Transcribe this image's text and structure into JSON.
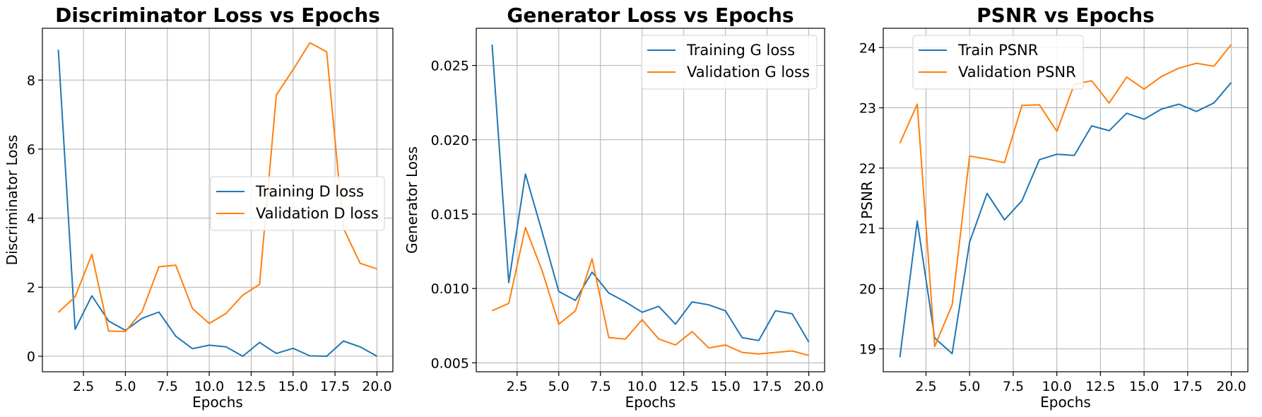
{
  "chart_data": [
    {
      "type": "line",
      "title": "Discriminator Loss vs Epochs",
      "xlabel": "Epochs",
      "ylabel": "Discriminator Loss",
      "xlim": [
        0.05,
        20.95
      ],
      "ylim": [
        -0.45,
        9.5
      ],
      "xticks": [
        2.5,
        5.0,
        7.5,
        10.0,
        12.5,
        15.0,
        17.5,
        20.0
      ],
      "xtick_labels": [
        "2.5",
        "5.0",
        "7.5",
        "10.0",
        "12.5",
        "15.0",
        "17.5",
        "20.0"
      ],
      "yticks": [
        0,
        2,
        4,
        6,
        8
      ],
      "ytick_labels": [
        "0",
        "2",
        "4",
        "6",
        "8"
      ],
      "grid": true,
      "legend": "center-right",
      "x": [
        1,
        2,
        3,
        4,
        5,
        6,
        7,
        8,
        9,
        10,
        11,
        12,
        13,
        14,
        15,
        16,
        17,
        18,
        19,
        20
      ],
      "series": [
        {
          "name": "Training D loss",
          "color": "#1f77b4",
          "values": [
            8.88,
            0.78,
            1.75,
            1.02,
            0.75,
            1.1,
            1.28,
            0.58,
            0.22,
            0.32,
            0.27,
            0.0,
            0.4,
            0.08,
            0.23,
            0.01,
            0.0,
            0.44,
            0.27,
            0.0
          ]
        },
        {
          "name": "Validation D loss",
          "color": "#ff7f0e",
          "values": [
            1.27,
            1.72,
            2.95,
            0.73,
            0.72,
            1.3,
            2.59,
            2.64,
            1.38,
            0.95,
            1.24,
            1.77,
            2.08,
            7.57,
            8.3,
            9.08,
            8.82,
            3.71,
            2.69,
            2.53
          ]
        }
      ]
    },
    {
      "type": "line",
      "title": "Generator Loss vs Epochs",
      "xlabel": "Epochs",
      "ylabel": "Generator Loss",
      "xlim": [
        0.05,
        20.95
      ],
      "ylim": [
        0.0044,
        0.0275
      ],
      "xticks": [
        2.5,
        5.0,
        7.5,
        10.0,
        12.5,
        15.0,
        17.5,
        20.0
      ],
      "xtick_labels": [
        "2.5",
        "5.0",
        "7.5",
        "10.0",
        "12.5",
        "15.0",
        "17.5",
        "20.0"
      ],
      "yticks": [
        0.005,
        0.01,
        0.015,
        0.02,
        0.025
      ],
      "ytick_labels": [
        "0.005",
        "0.010",
        "0.015",
        "0.020",
        "0.025"
      ],
      "grid": true,
      "legend": "top-right",
      "x": [
        1,
        2,
        3,
        4,
        5,
        6,
        7,
        8,
        9,
        10,
        11,
        12,
        13,
        14,
        15,
        16,
        17,
        18,
        19,
        20
      ],
      "series": [
        {
          "name": "Training G loss",
          "color": "#1f77b4",
          "values": [
            0.0264,
            0.0104,
            0.0177,
            0.0138,
            0.0098,
            0.0092,
            0.0111,
            0.0097,
            0.0091,
            0.0084,
            0.0088,
            0.0076,
            0.0091,
            0.0089,
            0.0085,
            0.0067,
            0.0065,
            0.0085,
            0.0083,
            0.0064
          ]
        },
        {
          "name": "Validation G loss",
          "color": "#ff7f0e",
          "values": [
            0.0085,
            0.009,
            0.0141,
            0.0112,
            0.0076,
            0.0085,
            0.012,
            0.0067,
            0.0066,
            0.0079,
            0.0066,
            0.0062,
            0.0071,
            0.006,
            0.0062,
            0.0057,
            0.0056,
            0.0057,
            0.0058,
            0.0055
          ]
        }
      ]
    },
    {
      "type": "line",
      "title": "PSNR vs Epochs",
      "xlabel": "Epochs",
      "ylabel": "PSNR",
      "xlim": [
        0.05,
        20.95
      ],
      "ylim": [
        18.62,
        24.32
      ],
      "xticks": [
        2.5,
        5.0,
        7.5,
        10.0,
        12.5,
        15.0,
        17.5,
        20.0
      ],
      "xtick_labels": [
        "2.5",
        "5.0",
        "7.5",
        "10.0",
        "12.5",
        "15.0",
        "17.5",
        "20.0"
      ],
      "yticks": [
        19,
        20,
        21,
        22,
        23,
        24
      ],
      "ytick_labels": [
        "19",
        "20",
        "21",
        "22",
        "23",
        "24"
      ],
      "grid": true,
      "legend": "top-left",
      "x": [
        1,
        2,
        3,
        4,
        5,
        6,
        7,
        8,
        9,
        10,
        11,
        12,
        13,
        14,
        15,
        16,
        17,
        18,
        19,
        20
      ],
      "series": [
        {
          "name": "Train PSNR",
          "color": "#1f77b4",
          "values": [
            18.86,
            21.12,
            19.18,
            18.92,
            20.77,
            21.58,
            21.14,
            21.46,
            22.14,
            22.23,
            22.21,
            22.7,
            22.62,
            22.91,
            22.81,
            22.98,
            23.06,
            22.94,
            23.08,
            23.42
          ]
        },
        {
          "name": "Validation PSNR",
          "color": "#ff7f0e",
          "values": [
            22.41,
            23.06,
            19.04,
            19.73,
            22.2,
            22.15,
            22.09,
            23.04,
            23.05,
            22.61,
            23.39,
            23.45,
            23.08,
            23.51,
            23.31,
            23.52,
            23.66,
            23.74,
            23.69,
            24.05
          ]
        }
      ]
    }
  ]
}
